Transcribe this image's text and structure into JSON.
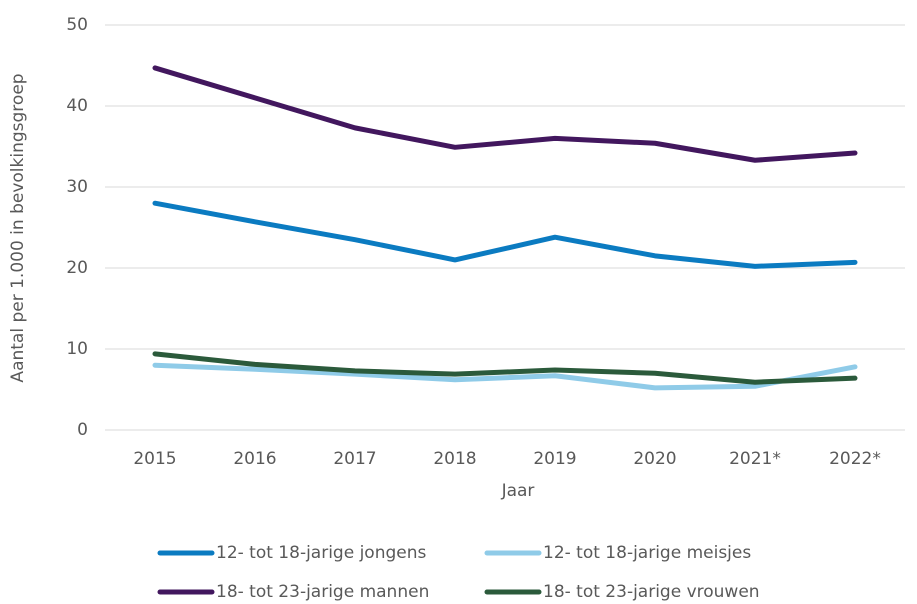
{
  "chart_data": {
    "type": "line",
    "x_label": "Jaar",
    "y_label": "Aantal per 1.000 in bevolkingsgroep",
    "categories": [
      "2015",
      "2016",
      "2017",
      "2018",
      "2019",
      "2020",
      "2021*",
      "2022*"
    ],
    "series": [
      {
        "name": "12- tot 18-jarige jongens",
        "color": "#0b7bc1",
        "values": [
          28.0,
          25.7,
          23.5,
          21.0,
          23.8,
          21.5,
          20.2,
          20.7
        ]
      },
      {
        "name": "12- tot 18-jarige meisjes",
        "color": "#8fcbe8",
        "values": [
          8.0,
          7.5,
          6.9,
          6.2,
          6.7,
          5.2,
          5.4,
          7.8
        ]
      },
      {
        "name": "18- tot 23-jarige mannen",
        "color": "#42175e",
        "values": [
          44.7,
          41.0,
          37.3,
          34.9,
          36.0,
          35.4,
          33.3,
          34.2
        ]
      },
      {
        "name": "18- tot 23-jarige vrouwen",
        "color": "#2b5a3b",
        "values": [
          9.4,
          8.1,
          7.3,
          6.9,
          7.4,
          7.0,
          5.9,
          6.4
        ]
      }
    ],
    "ylim": [
      0,
      50
    ],
    "yticks": [
      0,
      10,
      20,
      30,
      40,
      50
    ],
    "grid": true
  }
}
